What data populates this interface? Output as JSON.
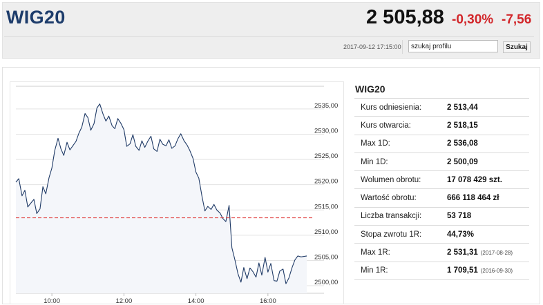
{
  "header": {
    "title": "WIG20",
    "price": "2 505,88",
    "change_pct": "-0,30%",
    "change_abs": "-7,56",
    "timestamp": "2017-09-12 17:15:00",
    "search_value": "szukaj profilu",
    "search_button": "Szukaj"
  },
  "colors": {
    "title": "#1d3c6b",
    "negative": "#d2262a",
    "line": "#1f3a66",
    "area": "#f4f6fa",
    "reference": "#e03b3b"
  },
  "stats": {
    "title": "WIG20",
    "rows": [
      {
        "label": "Kurs odniesienia:",
        "value": "2 513,44",
        "note": ""
      },
      {
        "label": "Kurs otwarcia:",
        "value": "2 518,15",
        "note": ""
      },
      {
        "label": "Max 1D:",
        "value": "2 536,08",
        "note": ""
      },
      {
        "label": "Min 1D:",
        "value": "2 500,09",
        "note": ""
      },
      {
        "label": "Wolumen obrotu:",
        "value": "17 078 429 szt.",
        "note": ""
      },
      {
        "label": "Wartość obrotu:",
        "value": "666 118 464 zł",
        "note": ""
      },
      {
        "label": "Liczba transakcji:",
        "value": "53 718",
        "note": ""
      },
      {
        "label": "Stopa zwrotu 1R:",
        "value": "44,73%",
        "note": ""
      },
      {
        "label": "Max 1R:",
        "value": "2 531,31",
        "note": "(2017-08-28)"
      },
      {
        "label": "Min 1R:",
        "value": "1 709,51",
        "note": "(2016-09-30)"
      }
    ]
  },
  "chart_data": {
    "type": "area",
    "x_range": [
      9.0,
      17.25
    ],
    "ylim": [
      2498.5,
      2539.5
    ],
    "y_ticks": [
      "2500,00",
      "2505,00",
      "2510,00",
      "2515,00",
      "2520,00",
      "2525,00",
      "2530,00",
      "2535,00"
    ],
    "x_ticks": [
      "10:00",
      "12:00",
      "14:00",
      "16:00"
    ],
    "reference_line": 2513.44,
    "grid": true,
    "series": [
      {
        "x": [
          9.0,
          9.08,
          9.17,
          9.25,
          9.33,
          9.42,
          9.5,
          9.58,
          9.67,
          9.75,
          9.83,
          9.92,
          10.0,
          10.08,
          10.17,
          10.25,
          10.33,
          10.42,
          10.5,
          10.58,
          10.67,
          10.75,
          10.83,
          10.92,
          11.0,
          11.08,
          11.17,
          11.25,
          11.33,
          11.42,
          11.5,
          11.58,
          11.67,
          11.75,
          11.83,
          11.92,
          12.0,
          12.08,
          12.17,
          12.25,
          12.33,
          12.42,
          12.5,
          12.58,
          12.67,
          12.75,
          12.83,
          12.92,
          13.0,
          13.08,
          13.17,
          13.25,
          13.33,
          13.42,
          13.5,
          13.58,
          13.67,
          13.75,
          13.83,
          13.92,
          14.0,
          14.08,
          14.17,
          14.25,
          14.33,
          14.42,
          14.5,
          14.58,
          14.67,
          14.75,
          14.83,
          14.92,
          15.0,
          15.08,
          15.17,
          15.25,
          15.33,
          15.42,
          15.5,
          15.58,
          15.67,
          15.75,
          15.83,
          15.92,
          16.0,
          16.08,
          16.17,
          16.25,
          16.33,
          16.42,
          16.5,
          16.58,
          16.67,
          16.75,
          16.83,
          16.92,
          17.0,
          17.08
        ],
        "y": [
          2520.5,
          2521.2,
          2517.8,
          2518.9,
          2515.6,
          2516.4,
          2517.1,
          2514.3,
          2515.2,
          2519.6,
          2518.2,
          2521.4,
          2523.3,
          2526.8,
          2529.2,
          2527.1,
          2525.8,
          2528.4,
          2526.9,
          2527.7,
          2528.6,
          2530.2,
          2531.4,
          2534.1,
          2533.3,
          2530.8,
          2532.1,
          2535.2,
          2536.0,
          2534.0,
          2532.6,
          2533.6,
          2531.7,
          2531.1,
          2533.1,
          2532.1,
          2530.9,
          2527.6,
          2528.1,
          2529.9,
          2527.6,
          2526.8,
          2528.7,
          2527.4,
          2528.7,
          2529.6,
          2527.1,
          2526.6,
          2529.0,
          2528.0,
          2527.7,
          2528.9,
          2527.2,
          2527.7,
          2529.1,
          2530.1,
          2528.7,
          2527.9,
          2526.8,
          2525.2,
          2522.5,
          2521.3,
          2517.6,
          2514.8,
          2515.7,
          2515.1,
          2516.1,
          2515.0,
          2514.4,
          2513.3,
          2512.7,
          2515.9,
          2507.5,
          2505.2,
          2502.3,
          2500.7,
          2503.6,
          2501.4,
          2503.5,
          2502.8,
          2501.7,
          2504.5,
          2502.1,
          2505.6,
          2502.7,
          2504.4,
          2501.0,
          2500.9,
          2502.9,
          2503.3,
          2500.4,
          2501.5,
          2503.6,
          2505.1,
          2505.9,
          2505.7,
          2505.8,
          2505.9
        ]
      }
    ]
  }
}
